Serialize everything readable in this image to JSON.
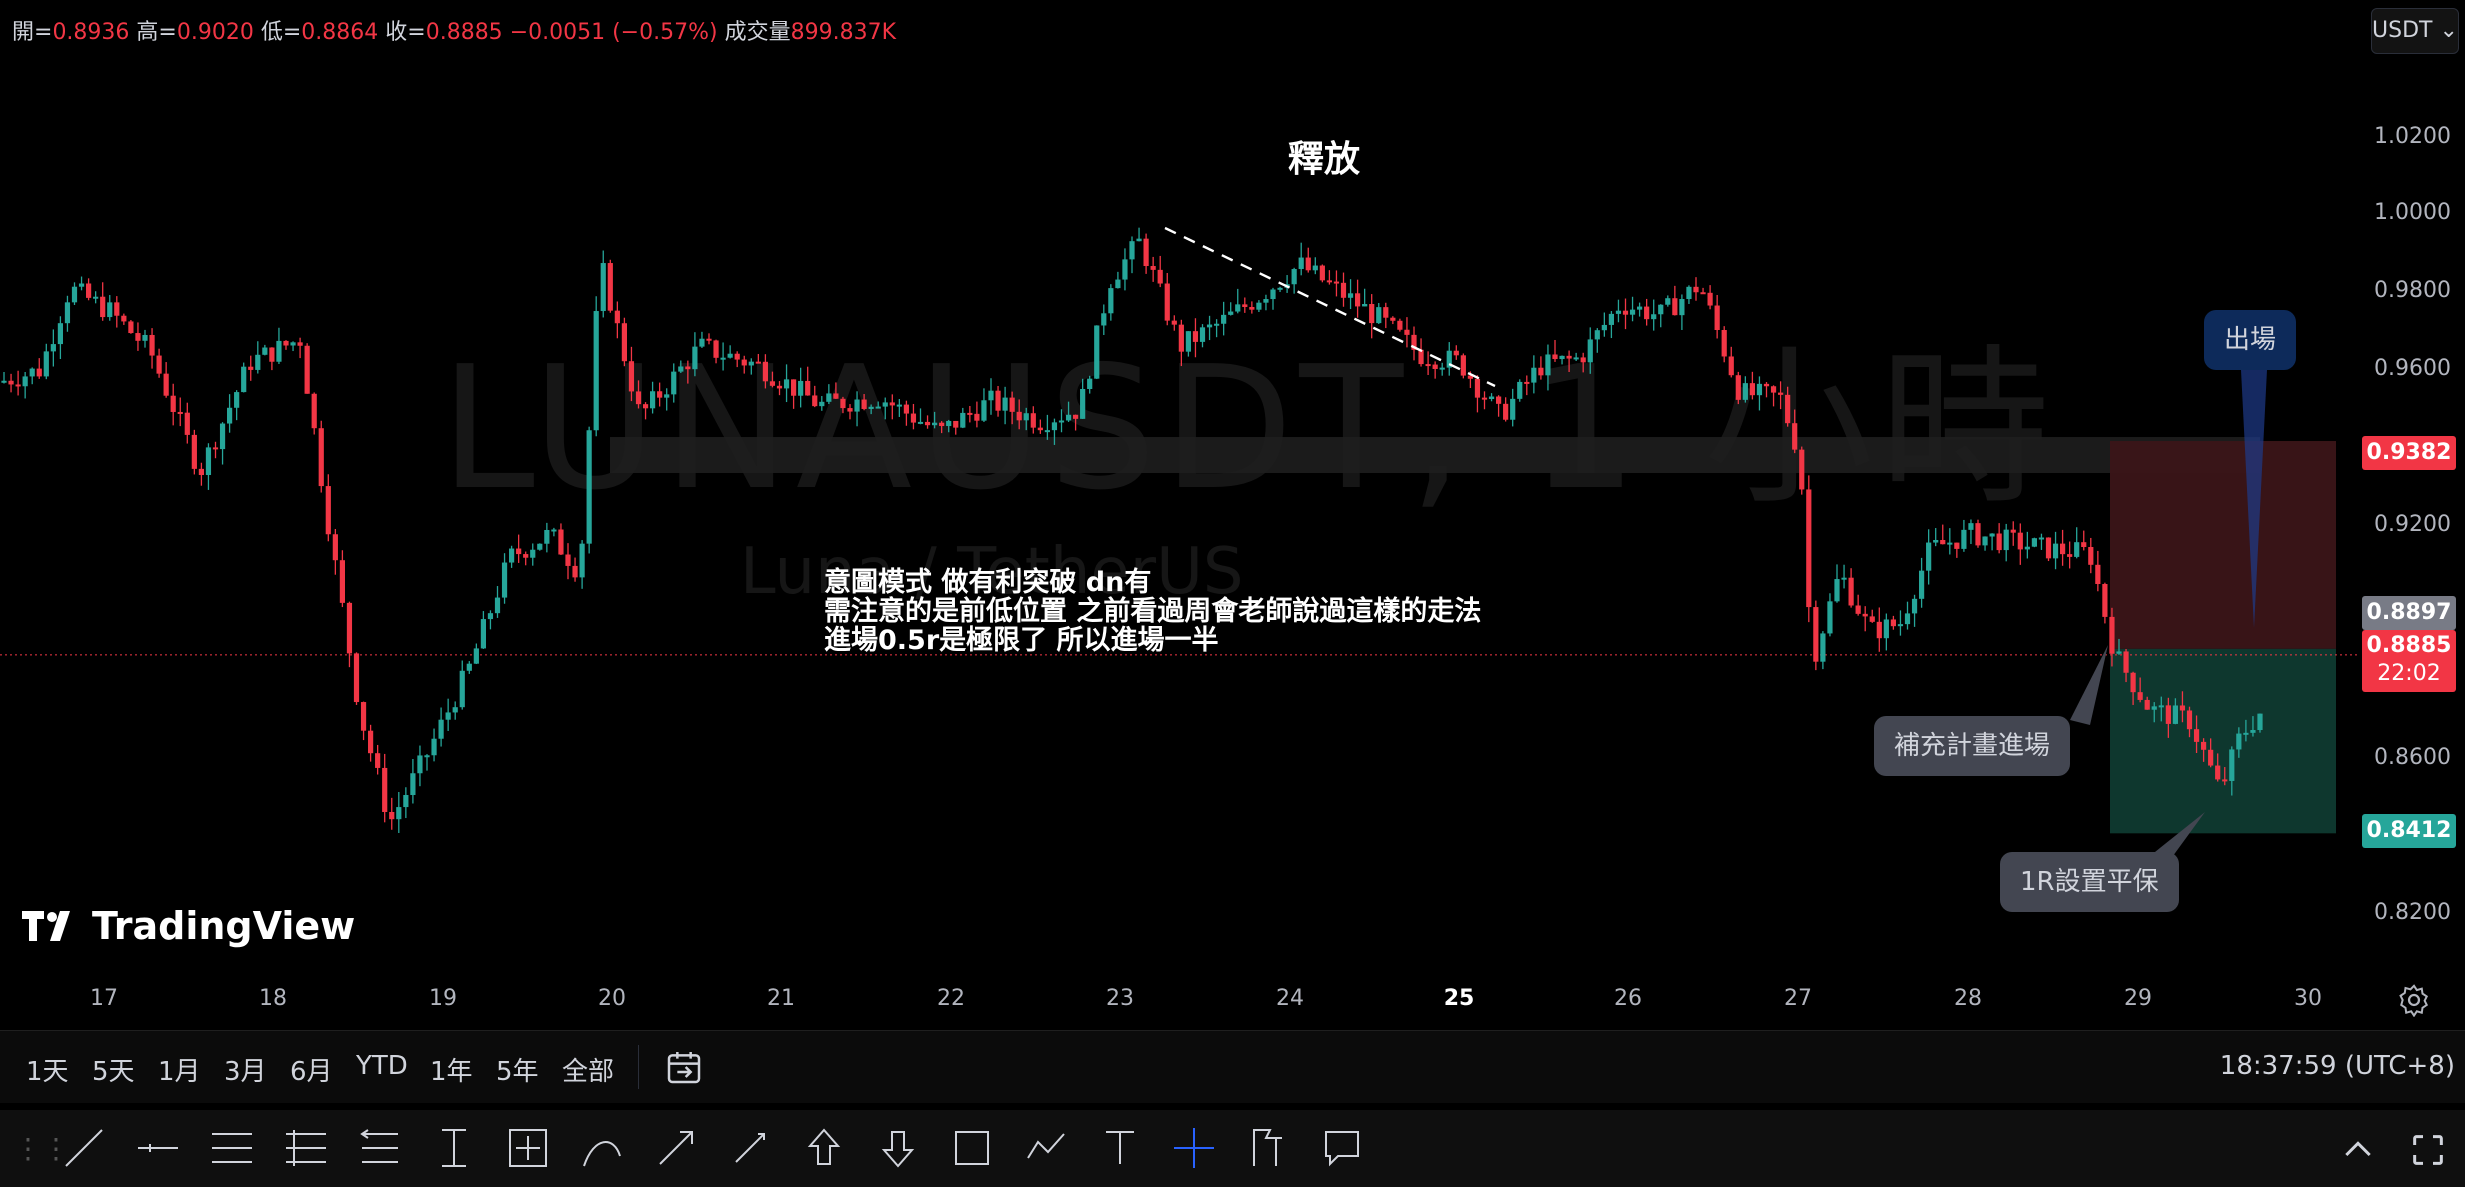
{
  "ohlc": {
    "open_label": "開=",
    "open": "0.8936",
    "high_label": "高=",
    "high": "0.9020",
    "low_label": "低=",
    "low": "0.8864",
    "close_label": "收=",
    "close": "0.8885",
    "change": "−0.0051 (−0.57%)",
    "volume_label": "成交量",
    "volume": "899.837K"
  },
  "currency": {
    "label": "USDT",
    "chevron": "chevron-down-icon"
  },
  "watermark": {
    "symbol": "LUNAUSDT, 1 小時",
    "pair": "Luna / TetherUS"
  },
  "annotations": {
    "title": "釋放",
    "note_line1": "意圖模式 做有利突破 dn有",
    "note_line2": "需注意的是前低位置 之前看過周會老師說過這樣的走法",
    "note_line3": "進場0.5r是極限了 所以進場一半",
    "callout_entry": "補充計畫進場",
    "callout_breakeven": "1R設置平保",
    "callout_exit": "出場"
  },
  "price_axis": {
    "ticks": [
      "1.0200",
      "1.0000",
      "0.9800",
      "0.9600",
      "0.9200",
      "0.8600",
      "0.8200"
    ],
    "stop_price": "0.9382",
    "crosshair_price": "0.8897",
    "last_price": "0.8885",
    "countdown": "22:02",
    "target_price": "0.8412"
  },
  "time_axis": {
    "ticks": [
      "17",
      "18",
      "19",
      "20",
      "21",
      "22",
      "23",
      "24",
      "25",
      "26",
      "27",
      "28",
      "29",
      "30"
    ]
  },
  "bottom_bar": {
    "ranges": [
      "1天",
      "5天",
      "1月",
      "3月",
      "6月",
      "YTD",
      "1年",
      "5年",
      "全部"
    ],
    "clock": "18:37:59 (UTC+8)"
  },
  "brand": {
    "name": "TradingView"
  },
  "colors": {
    "up": "#26a69a",
    "down": "#f23645",
    "stop_zone": "#3b1518",
    "target_zone": "#0f3a30",
    "accent": "#2962ff"
  },
  "tools": [
    "trendline-icon",
    "horizontal-ray-icon",
    "parallel-channel-icon",
    "fib-retracement-icon",
    "pitchfork-icon",
    "text-anchor-icon",
    "measure-icon",
    "brush-icon",
    "arrow-icon",
    "arrow-marker-icon",
    "arrow-up-icon",
    "arrow-down-icon",
    "rectangle-icon",
    "path-icon",
    "text-icon",
    "crosshair-icon",
    "forecast-icon",
    "comment-icon"
  ]
}
